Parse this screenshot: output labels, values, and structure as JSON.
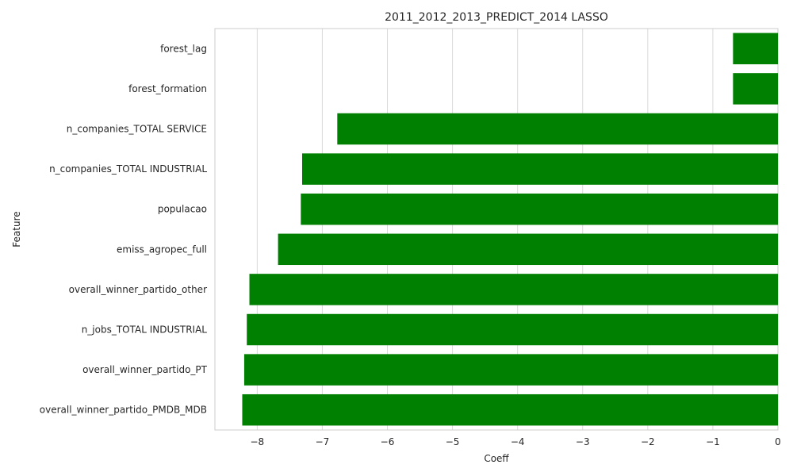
{
  "chart_data": {
    "type": "bar",
    "orientation": "horizontal",
    "title": "2011_2012_2013_PREDICT_2014 LASSO",
    "xlabel": "Coeff",
    "ylabel": "Feature",
    "categories": [
      "forest_lag",
      "forest_formation",
      "n_companies_TOTAL SERVICE",
      "n_companies_TOTAL INDUSTRIAL",
      "populacao",
      "emiss_agropec_full",
      "overall_winner_partido_other",
      "n_jobs_TOTAL INDUSTRIAL",
      "overall_winner_partido_PT",
      "overall_winner_partido_PMDB_MDB"
    ],
    "values": [
      -0.69,
      -0.69,
      -6.77,
      -7.31,
      -7.33,
      -7.68,
      -8.12,
      -8.16,
      -8.2,
      -8.23
    ],
    "xlim": [
      -8.65,
      0
    ],
    "xticks": [
      -8,
      -7,
      -6,
      -5,
      -4,
      -3,
      -2,
      -1,
      0
    ],
    "xtick_labels": [
      "−8",
      "−7",
      "−6",
      "−5",
      "−4",
      "−3",
      "−2",
      "−1",
      "0"
    ],
    "bar_color": "#008000",
    "grid": "vertical"
  }
}
